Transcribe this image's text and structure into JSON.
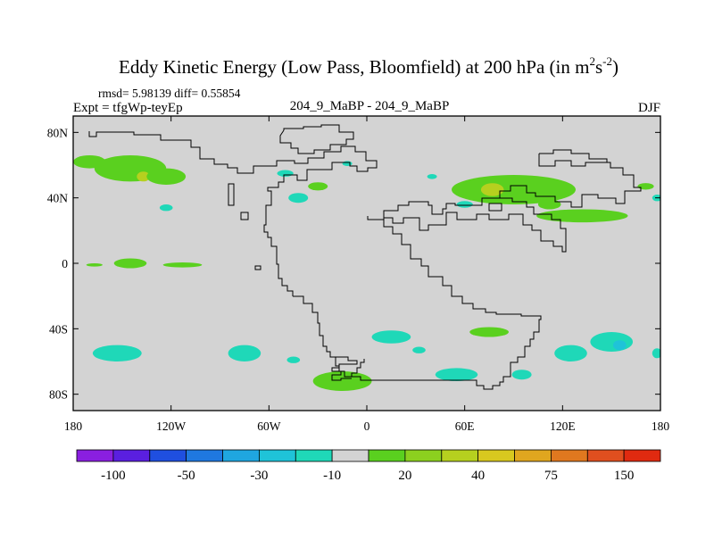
{
  "chart_data": {
    "type": "heatmap",
    "title_main": "Eddy Kinetic Energy (Low Pass, Bloomfield) at 200 hPa (in m",
    "title_sup1": "2",
    "title_mid": "s",
    "title_sup2": "-2",
    "title_end": ")",
    "stats_text": "rmsd= 5.98139 diff= 0.55854",
    "expt_text": "Expt = tfgWp-teyEp",
    "center_text": "204_9_MaBP - 204_9_MaBP",
    "season": "DJF",
    "x_range": [
      -180,
      180
    ],
    "y_range": [
      -90,
      90
    ],
    "x_ticks": [
      {
        "value": -180,
        "label": "180"
      },
      {
        "value": -120,
        "label": "120W"
      },
      {
        "value": -60,
        "label": "60W"
      },
      {
        "value": 0,
        "label": "0"
      },
      {
        "value": 60,
        "label": "60E"
      },
      {
        "value": 120,
        "label": "120E"
      },
      {
        "value": 180,
        "label": "180"
      }
    ],
    "y_ticks": [
      {
        "value": 80,
        "label": "80N"
      },
      {
        "value": 40,
        "label": "40N"
      },
      {
        "value": 0,
        "label": "0"
      },
      {
        "value": -40,
        "label": "40S"
      },
      {
        "value": -80,
        "label": "80S"
      }
    ],
    "background_color": "#d3d3d3",
    "colorbar": {
      "colors": [
        "#8a1fe0",
        "#5a1fe0",
        "#1f4fe0",
        "#1f78e0",
        "#1fa6e0",
        "#1fc3d8",
        "#1fd8b8",
        "#d3d3d3",
        "#5ad01f",
        "#8cd01f",
        "#b6d01f",
        "#d8c81f",
        "#e0a61f",
        "#e0781f",
        "#e04f1f",
        "#e02a10"
      ],
      "labels": [
        {
          "boundary": 1,
          "label": "-100"
        },
        {
          "boundary": 3,
          "label": "-50"
        },
        {
          "boundary": 5,
          "label": "-30"
        },
        {
          "boundary": 7,
          "label": "-10"
        },
        {
          "boundary": 9,
          "label": "20"
        },
        {
          "boundary": 11,
          "label": "40"
        },
        {
          "boundary": 13,
          "label": "75"
        },
        {
          "boundary": 15,
          "label": "150"
        }
      ]
    },
    "anomalies": [
      {
        "lon": -145,
        "lat": 58,
        "rlon": 22,
        "rlat": 8,
        "level": 20
      },
      {
        "lon": -170,
        "lat": 62,
        "rlon": 10,
        "rlat": 4,
        "level": 20
      },
      {
        "lon": -137,
        "lat": 53,
        "rlon": 4,
        "rlat": 3,
        "level": 40
      },
      {
        "lon": -123,
        "lat": 53,
        "rlon": 12,
        "rlat": 5,
        "level": 20
      },
      {
        "lon": -50,
        "lat": 55,
        "rlon": 5,
        "rlat": 2,
        "level": -10
      },
      {
        "lon": -123,
        "lat": 34,
        "rlon": 4,
        "rlat": 2,
        "level": -10
      },
      {
        "lon": -42,
        "lat": 40,
        "rlon": 6,
        "rlat": 3,
        "level": -10
      },
      {
        "lon": -30,
        "lat": 47,
        "rlon": 6,
        "rlat": 2.5,
        "level": 20
      },
      {
        "lon": -12,
        "lat": 61,
        "rlon": 3,
        "rlat": 1.5,
        "level": -10
      },
      {
        "lon": 40,
        "lat": 53,
        "rlon": 3,
        "rlat": 1.5,
        "level": -10
      },
      {
        "lon": 90,
        "lat": 45,
        "rlon": 38,
        "rlat": 9,
        "level": 20
      },
      {
        "lon": 77,
        "lat": 45,
        "rlon": 7,
        "rlat": 4,
        "level": 40
      },
      {
        "lon": 132,
        "lat": 29,
        "rlon": 28,
        "rlat": 4,
        "level": 20
      },
      {
        "lon": 112,
        "lat": 36,
        "rlon": 7,
        "rlat": 3,
        "level": 20
      },
      {
        "lon": 60,
        "lat": 36,
        "rlon": 5,
        "rlat": 2,
        "level": -10
      },
      {
        "lon": 178,
        "lat": 40,
        "rlon": 3,
        "rlat": 2,
        "level": -10
      },
      {
        "lon": 171,
        "lat": 47,
        "rlon": 5,
        "rlat": 2,
        "level": 20
      },
      {
        "lon": -145,
        "lat": 0,
        "rlon": 10,
        "rlat": 3,
        "level": 20
      },
      {
        "lon": -167,
        "lat": -1,
        "rlon": 5,
        "rlat": 1,
        "level": 20
      },
      {
        "lon": -113,
        "lat": -1,
        "rlon": 12,
        "rlat": 1.5,
        "level": 20
      },
      {
        "lon": -153,
        "lat": -55,
        "rlon": 15,
        "rlat": 5,
        "level": -10
      },
      {
        "lon": -75,
        "lat": -55,
        "rlon": 10,
        "rlat": 5,
        "level": -10
      },
      {
        "lon": -45,
        "lat": -59,
        "rlon": 4,
        "rlat": 2,
        "level": -10
      },
      {
        "lon": -15,
        "lat": -72,
        "rlon": 18,
        "rlat": 6,
        "level": 20
      },
      {
        "lon": 15,
        "lat": -45,
        "rlon": 12,
        "rlat": 4,
        "level": -10
      },
      {
        "lon": 32,
        "lat": -53,
        "rlon": 4,
        "rlat": 2,
        "level": -10
      },
      {
        "lon": 75,
        "lat": -42,
        "rlon": 12,
        "rlat": 3,
        "level": 20
      },
      {
        "lon": 55,
        "lat": -68,
        "rlon": 13,
        "rlat": 4,
        "level": -10
      },
      {
        "lon": 125,
        "lat": -55,
        "rlon": 10,
        "rlat": 5,
        "level": -10
      },
      {
        "lon": 150,
        "lat": -48,
        "rlon": 13,
        "rlat": 6,
        "level": -10
      },
      {
        "lon": 155,
        "lat": -50,
        "rlon": 4,
        "rlat": 3,
        "level": -30
      },
      {
        "lon": 95,
        "lat": -68,
        "rlon": 6,
        "rlat": 3,
        "level": -10
      },
      {
        "lon": 178,
        "lat": -55,
        "rlon": 3,
        "rlat": 3,
        "level": -10
      }
    ]
  }
}
